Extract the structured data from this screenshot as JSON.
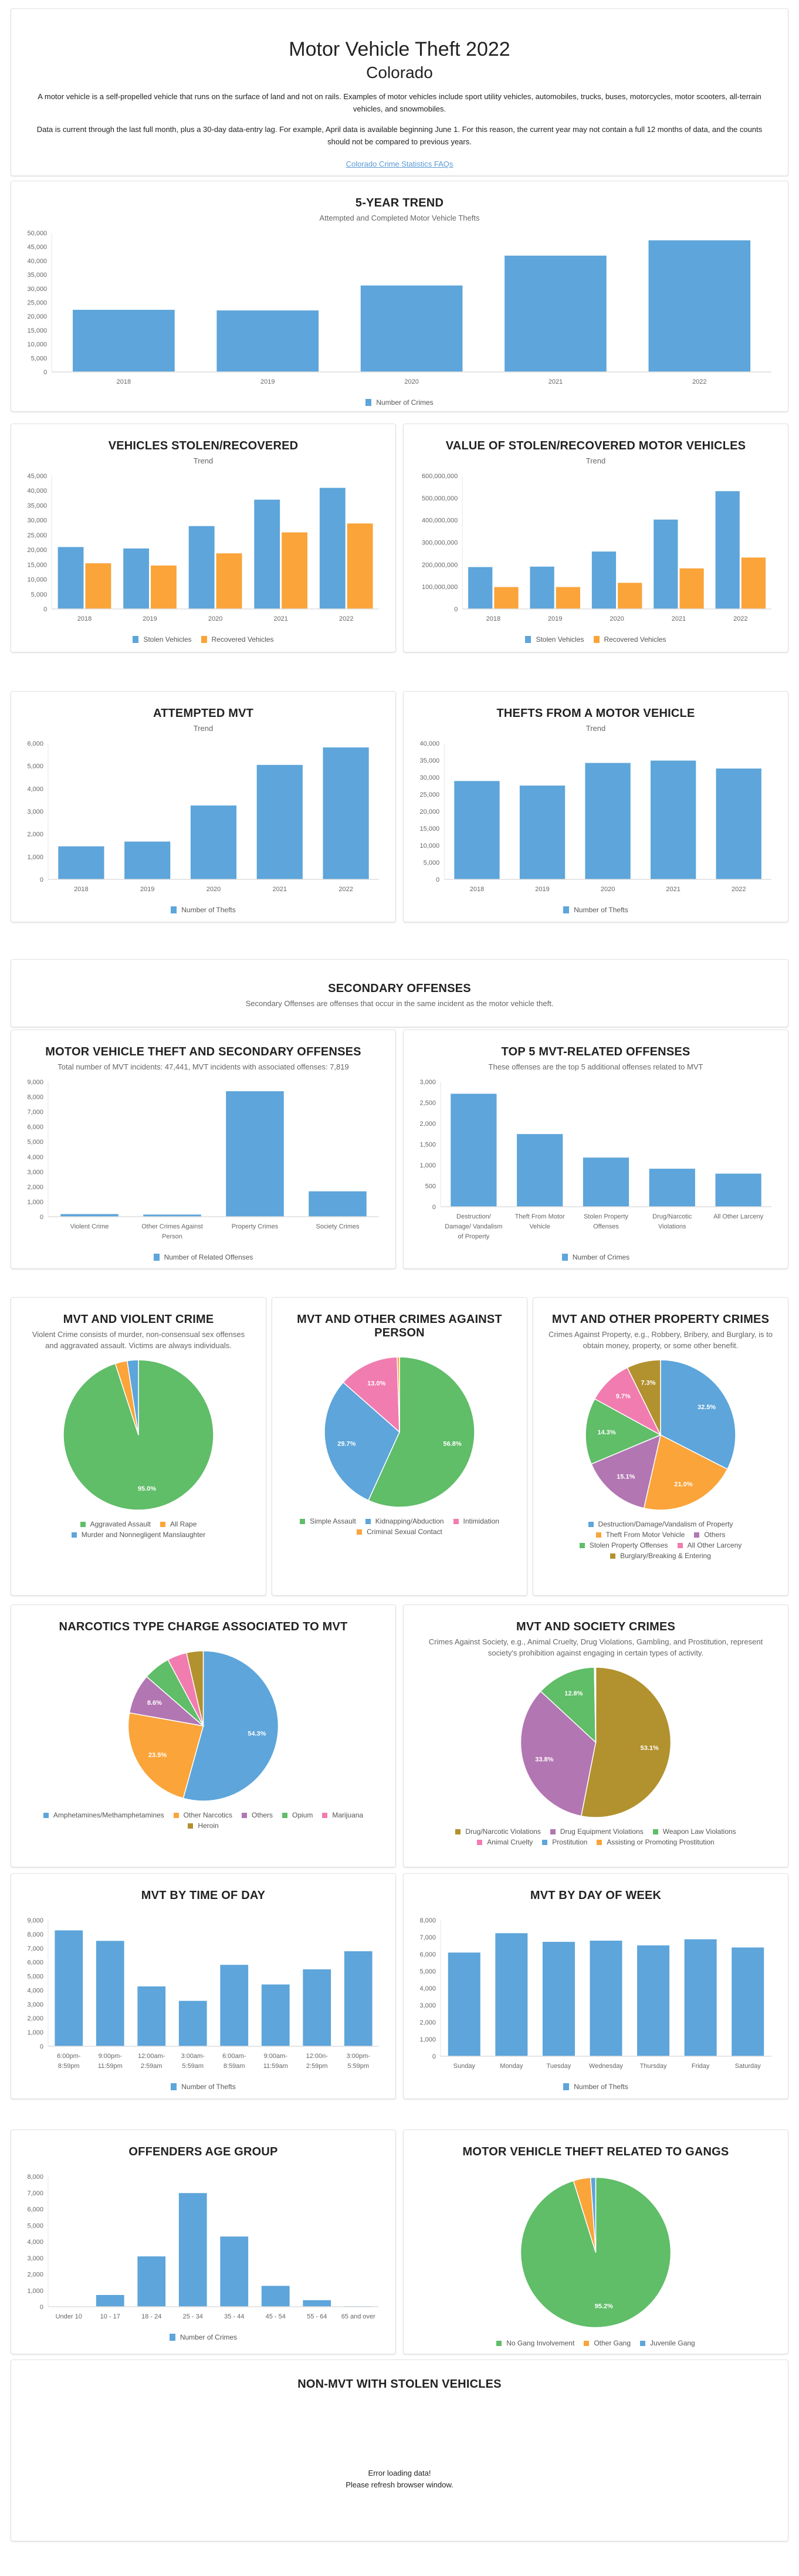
{
  "header": {
    "title": "Motor Vehicle Theft 2022",
    "state": "Colorado",
    "intro1": "A motor vehicle is a self-propelled vehicle that runs on the surface of land and not on rails. Examples of motor vehicles include sport utility vehicles, automobiles, trucks, buses, motorcycles, motor scooters, all-terrain vehicles, and snowmobiles.",
    "intro2": "Data is current through the last full month, plus a 30-day data-entry lag. For example, April data is available beginning June 1. For this reason, the current year may not contain a full 12 months of data, and the counts should not be compared to previous years.",
    "faq_link": "Colorado Crime Statistics FAQs"
  },
  "secondary": {
    "title": "SECONDARY OFFENSES",
    "subtitle": "Secondary Offenses are offenses that occur in the same incident as the motor vehicle theft."
  },
  "non_mvt": {
    "title": "NON-MVT WITH STOLEN VEHICLES",
    "error1": "Error loading data!",
    "error2": "Please refresh browser window."
  },
  "colors": {
    "blue": "#5DA5DA",
    "orange": "#FAA43A",
    "green": "#60BD68",
    "pink": "#F17CB0",
    "purple": "#B276B2",
    "olive": "#B2912F"
  },
  "chart_data": [
    {
      "type": "bar",
      "title": "5-YEAR TREND",
      "subtitle": "Attempted and Completed Motor Vehicle Thefts",
      "categories": [
        "2018",
        "2019",
        "2020",
        "2021",
        "2022"
      ],
      "ylim": [
        0,
        50000
      ],
      "ytick_step": 5000,
      "grid": false,
      "legend": "bottom",
      "series": [
        {
          "name": "Number of Crimes",
          "color": "#5DA5DA",
          "values": [
            22450,
            22220,
            31200,
            41930,
            47441
          ]
        }
      ]
    },
    {
      "type": "bar",
      "title": "VEHICLES STOLEN/RECOVERED",
      "subtitle": "Trend",
      "categories": [
        "2018",
        "2019",
        "2020",
        "2021",
        "2022"
      ],
      "ylim": [
        0,
        45000
      ],
      "ytick_step": 5000,
      "grid": false,
      "legend": "bottom",
      "series": [
        {
          "name": "Stolen Vehicles",
          "color": "#5DA5DA",
          "values": [
            21020,
            20540,
            28100,
            37030,
            41010
          ]
        },
        {
          "name": "Recovered Vehicles",
          "color": "#FAA43A",
          "values": [
            15530,
            14770,
            18890,
            25970,
            28990
          ]
        }
      ]
    },
    {
      "type": "bar",
      "title": "VALUE OF STOLEN/RECOVERED MOTOR VEHICLES",
      "subtitle": "Trend",
      "categories": [
        "2018",
        "2019",
        "2020",
        "2021",
        "2022"
      ],
      "ylim": [
        0,
        600000000
      ],
      "ytick_step": 100000000,
      "grid": false,
      "legend": "bottom",
      "series": [
        {
          "name": "Stolen Vehicles",
          "color": "#5DA5DA",
          "values": [
            190000000,
            192000000,
            260000000,
            404000000,
            532000000
          ]
        },
        {
          "name": "Recovered Vehicles",
          "color": "#FAA43A",
          "values": [
            100000000,
            100000000,
            119000000,
            184000000,
            233000000
          ]
        }
      ]
    },
    {
      "type": "bar",
      "title": "ATTEMPTED MVT",
      "subtitle": "Trend",
      "categories": [
        "2018",
        "2019",
        "2020",
        "2021",
        "2022"
      ],
      "ylim": [
        0,
        6000
      ],
      "ytick_step": 1000,
      "grid": false,
      "legend": "bottom",
      "series": [
        {
          "name": "Number of Thefts",
          "color": "#5DA5DA",
          "values": [
            1470,
            1680,
            3270,
            5060,
            5830
          ]
        }
      ]
    },
    {
      "type": "bar",
      "title": "THEFTS FROM A MOTOR VEHICLE",
      "subtitle": "Trend",
      "categories": [
        "2018",
        "2019",
        "2020",
        "2021",
        "2022"
      ],
      "ylim": [
        0,
        40000
      ],
      "ytick_step": 5000,
      "grid": false,
      "legend": "bottom",
      "series": [
        {
          "name": "Number of Thefts",
          "color": "#5DA5DA",
          "values": [
            29000,
            27660,
            34310,
            35000,
            32670
          ]
        }
      ]
    },
    {
      "type": "bar",
      "title": "MOTOR VEHICLE THEFT AND SECONDARY OFFENSES",
      "subtitle": "Total number of MVT incidents: 47,441, MVT incidents with associated offenses: 7,819",
      "categories": [
        "Violent Crime",
        "Other Crimes Against Person",
        "Property Crimes",
        "Society Crimes"
      ],
      "ylim": [
        0,
        9000
      ],
      "ytick_step": 1000,
      "grid": false,
      "legend": "bottom",
      "series": [
        {
          "name": "Number of Related Offenses",
          "color": "#5DA5DA",
          "values": [
            195,
            165,
            8390,
            1714
          ]
        }
      ]
    },
    {
      "type": "bar",
      "title": "TOP 5 MVT-RELATED OFFENSES",
      "subtitle": "These offenses are the top 5 additional offenses related to MVT",
      "categories": [
        "Destruction/ Damage/ Vandalism of Property",
        "Theft From Motor Vehicle",
        "Stolen Property Offenses",
        "Drug/Narcotic Violations",
        "All Other Larceny"
      ],
      "ylim": [
        0,
        3000
      ],
      "ytick_step": 500,
      "grid": false,
      "legend": "bottom",
      "series": [
        {
          "name": "Number of Crimes",
          "color": "#5DA5DA",
          "values": [
            2720,
            1752,
            1188,
            920,
            802
          ]
        }
      ]
    },
    {
      "type": "pie",
      "title": "MVT AND VIOLENT CRIME",
      "subtitle": "Violent Crime consists of murder, non-consensual sex offenses and aggravated assault. Victims are always individuals.",
      "legend": "bottom",
      "slices": [
        {
          "name": "Aggravated Assault",
          "value": 95.0,
          "color": "#60BD68"
        },
        {
          "name": "All Rape",
          "value": 2.6,
          "color": "#FAA43A"
        },
        {
          "name": "Murder and Nonnegligent Manslaughter",
          "value": 2.4,
          "color": "#5DA5DA"
        }
      ]
    },
    {
      "type": "pie",
      "title": "MVT AND OTHER CRIMES AGAINST PERSON",
      "subtitle": "",
      "legend": "bottom",
      "slices": [
        {
          "name": "Simple Assault",
          "value": 56.8,
          "color": "#60BD68"
        },
        {
          "name": "Kidnapping/Abduction",
          "value": 29.7,
          "color": "#5DA5DA"
        },
        {
          "name": "Intimidation",
          "value": 13.0,
          "color": "#F17CB0"
        },
        {
          "name": "Criminal Sexual Contact",
          "value": 0.5,
          "color": "#FAA43A"
        }
      ]
    },
    {
      "type": "pie",
      "title": "MVT AND OTHER PROPERTY CRIMES",
      "subtitle": "Crimes Against Property, e.g., Robbery, Bribery, and Burglary, is to obtain money, property, or some other benefit.",
      "legend": "bottom",
      "slices": [
        {
          "name": "Destruction/Damage/Vandalism of Property",
          "value": 32.5,
          "color": "#5DA5DA"
        },
        {
          "name": "Theft From Motor Vehicle",
          "value": 21.0,
          "color": "#FAA43A"
        },
        {
          "name": "Others",
          "value": 15.1,
          "color": "#B276B2"
        },
        {
          "name": "Stolen Property Offenses",
          "value": 14.3,
          "color": "#60BD68"
        },
        {
          "name": "All Other Larceny",
          "value": 9.7,
          "color": "#F17CB0"
        },
        {
          "name": "Burglary/Breaking & Entering",
          "value": 7.3,
          "color": "#B2912F"
        }
      ]
    },
    {
      "type": "pie",
      "title": "NARCOTICS TYPE CHARGE ASSOCIATED TO MVT",
      "subtitle": "",
      "legend": "bottom",
      "slices": [
        {
          "name": "Amphetamines/Methamphetamines",
          "value": 54.3,
          "color": "#5DA5DA"
        },
        {
          "name": "Other Narcotics",
          "value": 23.5,
          "color": "#FAA43A"
        },
        {
          "name": "Others",
          "value": 8.6,
          "color": "#B276B2"
        },
        {
          "name": "Opium",
          "value": 5.8,
          "color": "#60BD68"
        },
        {
          "name": "Marijuana",
          "value": 4.2,
          "color": "#F17CB0"
        },
        {
          "name": "Heroin",
          "value": 3.6,
          "color": "#B2912F"
        }
      ]
    },
    {
      "type": "pie",
      "title": "MVT AND SOCIETY CRIMES",
      "subtitle": "Crimes Against Society, e.g., Animal Cruelty, Drug Violations, Gambling, and Prostitution, represent society's prohibition against engaging in certain types of activity.",
      "legend": "bottom",
      "slices": [
        {
          "name": "Drug/Narcotic Violations",
          "value": 53.1,
          "color": "#B2912F"
        },
        {
          "name": "Drug Equipment Violations",
          "value": 33.8,
          "color": "#B276B2"
        },
        {
          "name": "Weapon Law Violations",
          "value": 12.8,
          "color": "#60BD68"
        },
        {
          "name": "Animal Cruelty",
          "value": 0.1,
          "color": "#F17CB0"
        },
        {
          "name": "Prostitution",
          "value": 0.1,
          "color": "#5DA5DA"
        },
        {
          "name": "Assisting or Promoting Prostitution",
          "value": 0.1,
          "color": "#FAA43A"
        }
      ]
    },
    {
      "type": "bar",
      "title": "MVT BY TIME OF DAY",
      "subtitle": "",
      "categories": [
        "6:00pm- 8:59pm",
        "9:00pm- 11:59pm",
        "12:00am- 2:59am",
        "3:00am- 5:59am",
        "6:00am- 8:59am",
        "9:00am- 11:59am",
        "12:00n- 2:59pm",
        "3:00pm- 5:59pm"
      ],
      "ylim": [
        0,
        9000
      ],
      "ytick_step": 1000,
      "grid": false,
      "legend": "bottom",
      "series": [
        {
          "name": "Number of Thefts",
          "color": "#5DA5DA",
          "values": [
            8290,
            7540,
            4290,
            3260,
            5830,
            4430,
            5510,
            6800
          ]
        }
      ]
    },
    {
      "type": "bar",
      "title": "MVT BY DAY OF WEEK",
      "subtitle": "",
      "categories": [
        "Sunday",
        "Monday",
        "Tuesday",
        "Wednesday",
        "Thursday",
        "Friday",
        "Saturday"
      ],
      "ylim": [
        0,
        8000
      ],
      "ytick_step": 1000,
      "grid": false,
      "legend": "bottom",
      "series": [
        {
          "name": "Number of Thefts",
          "color": "#5DA5DA",
          "values": [
            6110,
            7250,
            6740,
            6810,
            6530,
            6890,
            6410
          ]
        }
      ]
    },
    {
      "type": "bar",
      "title": "OFFENDERS AGE GROUP",
      "subtitle": "",
      "categories": [
        "Under 10",
        "10 - 17",
        "18 - 24",
        "25 - 34",
        "35 - 44",
        "45 - 54",
        "55 - 64",
        "65 and over"
      ],
      "ylim": [
        0,
        8000
      ],
      "ytick_step": 1000,
      "grid": false,
      "legend": "bottom",
      "series": [
        {
          "name": "Number of Crimes",
          "color": "#5DA5DA",
          "values": [
            10,
            740,
            3110,
            7000,
            4330,
            1300,
            420,
            55
          ]
        }
      ]
    },
    {
      "type": "pie",
      "title": "MOTOR VEHICLE THEFT RELATED TO GANGS",
      "subtitle": "",
      "legend": "bottom",
      "slices": [
        {
          "name": "No Gang Involvement",
          "value": 95.2,
          "color": "#60BD68"
        },
        {
          "name": "Other Gang",
          "value": 3.7,
          "color": "#FAA43A"
        },
        {
          "name": "Juvenile Gang",
          "value": 1.1,
          "color": "#5DA5DA"
        }
      ]
    }
  ]
}
